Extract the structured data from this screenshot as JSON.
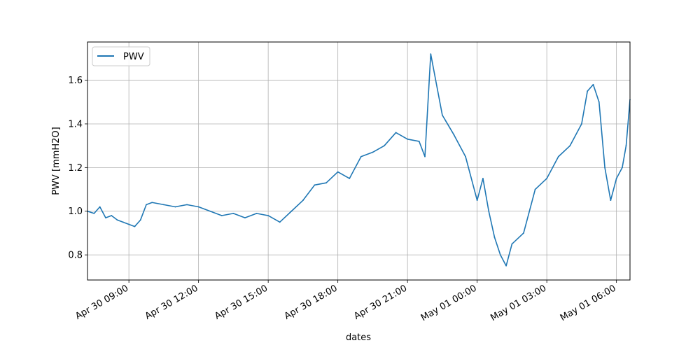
{
  "chart_data": {
    "type": "line",
    "title": "",
    "xlabel": "dates",
    "ylabel": "PWV [mmH2O]",
    "legend": {
      "position": "top-left",
      "entries": [
        "PWV"
      ]
    },
    "grid": true,
    "xlim": [
      "2023-04-30 07:13",
      "2023-05-01 06:35"
    ],
    "ylim": [
      0.685,
      1.775
    ],
    "x_ticks": [
      {
        "value": "2023-04-30 09:00",
        "label": "Apr 30 09:00"
      },
      {
        "value": "2023-04-30 12:00",
        "label": "Apr 30 12:00"
      },
      {
        "value": "2023-04-30 15:00",
        "label": "Apr 30 15:00"
      },
      {
        "value": "2023-04-30 18:00",
        "label": "Apr 30 18:00"
      },
      {
        "value": "2023-04-30 21:00",
        "label": "Apr 30 21:00"
      },
      {
        "value": "2023-05-01 00:00",
        "label": "May 01 00:00"
      },
      {
        "value": "2023-05-01 03:00",
        "label": "May 01 03:00"
      },
      {
        "value": "2023-05-01 06:00",
        "label": "May 01 06:00"
      }
    ],
    "y_ticks": [
      {
        "value": 0.8,
        "label": "0.8"
      },
      {
        "value": 1.0,
        "label": "1.0"
      },
      {
        "value": 1.2,
        "label": "1.2"
      },
      {
        "value": 1.4,
        "label": "1.4"
      },
      {
        "value": 1.6,
        "label": "1.6"
      }
    ],
    "series": [
      {
        "name": "PWV",
        "color": "#1f77b4",
        "x": [
          "2023-04-30 07:13",
          "2023-04-30 07:30",
          "2023-04-30 07:45",
          "2023-04-30 08:00",
          "2023-04-30 08:15",
          "2023-04-30 08:30",
          "2023-04-30 08:45",
          "2023-04-30 09:00",
          "2023-04-30 09:15",
          "2023-04-30 09:30",
          "2023-04-30 09:45",
          "2023-04-30 10:00",
          "2023-04-30 10:30",
          "2023-04-30 11:00",
          "2023-04-30 11:30",
          "2023-04-30 12:00",
          "2023-04-30 12:30",
          "2023-04-30 13:00",
          "2023-04-30 13:30",
          "2023-04-30 14:00",
          "2023-04-30 14:30",
          "2023-04-30 15:00",
          "2023-04-30 15:30",
          "2023-04-30 16:00",
          "2023-04-30 16:30",
          "2023-04-30 17:00",
          "2023-04-30 17:30",
          "2023-04-30 18:00",
          "2023-04-30 18:30",
          "2023-04-30 19:00",
          "2023-04-30 19:30",
          "2023-04-30 20:00",
          "2023-04-30 20:30",
          "2023-04-30 21:00",
          "2023-04-30 21:30",
          "2023-04-30 21:45",
          "2023-04-30 22:00",
          "2023-04-30 22:30",
          "2023-04-30 23:00",
          "2023-04-30 23:30",
          "2023-05-01 00:00",
          "2023-05-01 00:15",
          "2023-05-01 00:30",
          "2023-05-01 00:45",
          "2023-05-01 01:00",
          "2023-05-01 01:15",
          "2023-05-01 01:30",
          "2023-05-01 02:00",
          "2023-05-01 02:30",
          "2023-05-01 03:00",
          "2023-05-01 03:30",
          "2023-05-01 04:00",
          "2023-05-01 04:30",
          "2023-05-01 04:45",
          "2023-05-01 05:00",
          "2023-05-01 05:15",
          "2023-05-01 05:30",
          "2023-05-01 05:45",
          "2023-05-01 06:00",
          "2023-05-01 06:15",
          "2023-05-01 06:25",
          "2023-05-01 06:35"
        ],
        "y": [
          1.0,
          0.99,
          1.02,
          0.97,
          0.98,
          0.96,
          0.95,
          0.94,
          0.93,
          0.96,
          1.03,
          1.04,
          1.03,
          1.02,
          1.03,
          1.02,
          1.0,
          0.98,
          0.99,
          0.97,
          0.99,
          0.98,
          0.95,
          1.0,
          1.05,
          1.12,
          1.13,
          1.18,
          1.15,
          1.25,
          1.27,
          1.3,
          1.36,
          1.33,
          1.32,
          1.25,
          1.72,
          1.44,
          1.35,
          1.25,
          1.05,
          1.15,
          1.0,
          0.88,
          0.8,
          0.75,
          0.85,
          0.9,
          1.1,
          1.15,
          1.25,
          1.3,
          1.4,
          1.55,
          1.58,
          1.5,
          1.2,
          1.05,
          1.15,
          1.2,
          1.3,
          1.51
        ]
      }
    ]
  }
}
